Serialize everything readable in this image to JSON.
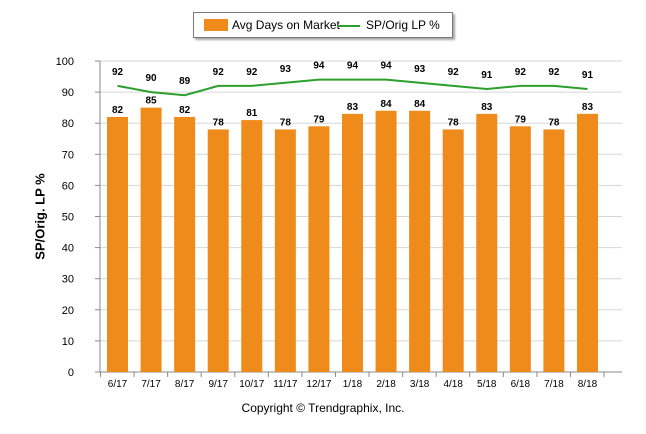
{
  "chart_data": {
    "type": "bar",
    "categories": [
      "6/17",
      "7/17",
      "8/17",
      "9/17",
      "10/17",
      "11/17",
      "12/17",
      "1/18",
      "2/18",
      "3/18",
      "4/18",
      "5/18",
      "6/18",
      "7/18",
      "8/18"
    ],
    "series": [
      {
        "name": "Avg Days on Market",
        "type": "bar",
        "color": "#ee8b1a",
        "values": [
          82,
          85,
          82,
          78,
          81,
          78,
          79,
          83,
          84,
          84,
          78,
          83,
          79,
          78,
          83
        ]
      },
      {
        "name": "SP/Orig LP %",
        "type": "line",
        "color": "#2ca02c",
        "values": [
          92,
          90,
          89,
          92,
          92,
          93,
          94,
          94,
          94,
          93,
          92,
          91,
          92,
          92,
          91
        ]
      }
    ],
    "ylabel": "SP/Orig. LP %",
    "ylim": [
      0,
      100
    ],
    "yticks": [
      0,
      10,
      20,
      30,
      40,
      50,
      60,
      70,
      80,
      90,
      100
    ],
    "grid": true,
    "legend_position": "top-center"
  },
  "footer": "Copyright © Trendgraphix, Inc."
}
